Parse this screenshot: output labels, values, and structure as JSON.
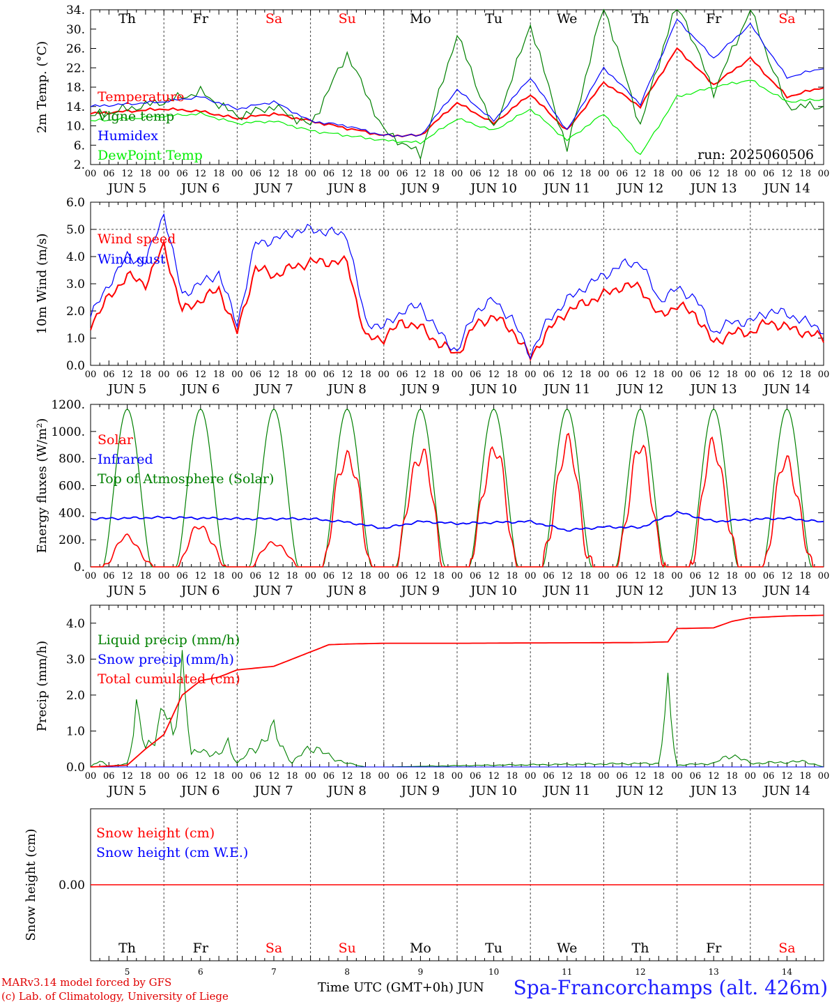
{
  "chart_data": [
    {
      "type": "line",
      "ylabel": "2m Temp. (°C)",
      "ylim": [
        2,
        34
      ],
      "yticks": [
        "34.",
        "30.",
        "26.",
        "22.",
        "18.",
        "14.",
        "10.",
        "6.",
        "2."
      ],
      "run_label": "run: 2025060506",
      "top_day_labels": [
        "Th",
        "Fr",
        "Sa",
        "Su",
        "Mo",
        "Tu",
        "We",
        "Th",
        "Fr",
        "Sa"
      ],
      "date_labels": [
        "JUN  5",
        "JUN  6",
        "JUN  7",
        "JUN  8",
        "JUN  9",
        "JUN 10",
        "JUN 11",
        "JUN 12",
        "JUN 13",
        "JUN 14"
      ],
      "series": [
        {
          "name": "Temperature",
          "color": "#ff0000",
          "t": [
            0,
            24,
            36,
            48,
            60,
            72,
            84,
            96,
            108,
            120,
            132,
            144,
            156,
            168,
            180,
            192,
            204,
            216,
            228,
            240
          ],
          "values": [
            12.5,
            13.5,
            13,
            11.5,
            12.5,
            11,
            9.5,
            8,
            8,
            14.8,
            10.5,
            16.5,
            9,
            19,
            14,
            26,
            18.5,
            24,
            16,
            18
          ]
        },
        {
          "name": "Vigne temp",
          "color": "#008000",
          "t": [
            0,
            24,
            36,
            48,
            60,
            72,
            84,
            96,
            108,
            120,
            132,
            144,
            156,
            168,
            180,
            192,
            204,
            216,
            228,
            240
          ],
          "values": [
            12,
            15,
            17,
            12,
            14,
            10,
            25,
            9,
            4,
            29,
            9,
            31,
            5,
            35,
            10,
            36,
            17,
            34,
            14,
            14
          ]
        },
        {
          "name": "Humidex",
          "color": "#0000ff",
          "t": [
            0,
            24,
            36,
            48,
            60,
            72,
            84,
            96,
            108,
            120,
            132,
            144,
            156,
            168,
            180,
            192,
            204,
            216,
            228,
            240
          ],
          "values": [
            14,
            15,
            16,
            13.5,
            15,
            11,
            10,
            8,
            8,
            17.5,
            11,
            20,
            9,
            22,
            14.5,
            32,
            24,
            31,
            20,
            22
          ]
        },
        {
          "name": "DewPoint Temp",
          "color": "#00ee00",
          "t": [
            0,
            24,
            36,
            48,
            60,
            72,
            84,
            96,
            108,
            120,
            132,
            144,
            156,
            168,
            180,
            192,
            204,
            216,
            228,
            240
          ],
          "values": [
            11,
            12,
            12.5,
            10.5,
            11,
            9,
            8,
            7,
            6.5,
            11.5,
            9,
            13.5,
            7,
            12.5,
            4,
            16,
            18,
            19.5,
            15,
            15.5
          ]
        }
      ]
    },
    {
      "type": "line",
      "ylabel": "10m Wind (m/s)",
      "ylim": [
        0,
        6
      ],
      "yticks": [
        "6.0",
        "5.0",
        "4.0",
        "3.0",
        "2.0",
        "1.0",
        "0.0"
      ],
      "reference_line": 5.0,
      "date_labels": [
        "JUN  5",
        "JUN  6",
        "JUN  7",
        "JUN  8",
        "JUN  9",
        "JUN 10",
        "JUN 11",
        "JUN 12",
        "JUN 13",
        "JUN 14"
      ],
      "series": [
        {
          "name": "Wind speed",
          "color": "#ff0000",
          "t": [
            0,
            6,
            12,
            18,
            24,
            30,
            36,
            42,
            48,
            54,
            60,
            66,
            72,
            78,
            84,
            90,
            96,
            102,
            108,
            114,
            120,
            126,
            132,
            138,
            144,
            150,
            156,
            162,
            168,
            174,
            180,
            186,
            192,
            198,
            204,
            210,
            216,
            222,
            228,
            234,
            240
          ],
          "values": [
            1.5,
            2.5,
            3.3,
            3.0,
            4.4,
            2.0,
            2.4,
            2.8,
            1.2,
            3.6,
            3.3,
            3.6,
            3.8,
            3.8,
            3.8,
            1.0,
            1.0,
            1.6,
            1.4,
            0.8,
            0.4,
            1.5,
            1.8,
            1.3,
            0.3,
            1.3,
            2.0,
            2.3,
            2.6,
            2.9,
            2.9,
            1.8,
            2.2,
            1.9,
            0.8,
            1.2,
            1.2,
            1.6,
            1.4,
            1.2,
            1.0
          ]
        },
        {
          "name": "Wind gust",
          "color": "#0000ff",
          "t": [
            0,
            6,
            12,
            18,
            24,
            30,
            36,
            42,
            48,
            54,
            60,
            66,
            72,
            78,
            84,
            90,
            96,
            102,
            108,
            114,
            120,
            126,
            132,
            138,
            144,
            150,
            156,
            162,
            168,
            174,
            180,
            186,
            192,
            198,
            204,
            210,
            216,
            222,
            228,
            234,
            240
          ],
          "values": [
            1.8,
            3.0,
            4.0,
            3.8,
            5.6,
            2.6,
            3.0,
            3.4,
            1.5,
            4.5,
            4.6,
            4.9,
            5.0,
            4.9,
            4.8,
            1.6,
            1.4,
            2.0,
            2.2,
            1.2,
            0.5,
            2.0,
            2.4,
            1.7,
            0.4,
            1.7,
            2.4,
            2.9,
            3.3,
            3.7,
            3.8,
            2.4,
            2.8,
            2.5,
            1.2,
            1.6,
            1.6,
            2.0,
            1.9,
            1.6,
            1.3
          ]
        }
      ]
    },
    {
      "type": "line",
      "ylabel": "Energy fluxes (W/m²)",
      "ylim": [
        0,
        1200
      ],
      "yticks": [
        "1200.",
        "1000.",
        "800.",
        "600.",
        "400.",
        "200.",
        "0."
      ],
      "date_labels": [
        "JUN  5",
        "JUN  6",
        "JUN  7",
        "JUN  8",
        "JUN  9",
        "JUN 10",
        "JUN 11",
        "JUN 12",
        "JUN 13",
        "JUN 14"
      ],
      "daily_solar_peaks": [
        220,
        300,
        180,
        840,
        850,
        860,
        890,
        860,
        870,
        780
      ],
      "toa_peak": 1165,
      "series": [
        {
          "name": "Solar",
          "color": "#ff0000"
        },
        {
          "name": "Infrared",
          "color": "#0000ff",
          "t": [
            0,
            24,
            48,
            72,
            84,
            96,
            108,
            120,
            144,
            156,
            168,
            180,
            192,
            204,
            216,
            228,
            240
          ],
          "values": [
            355,
            365,
            355,
            355,
            330,
            285,
            335,
            320,
            335,
            270,
            295,
            290,
            405,
            335,
            350,
            360,
            330
          ]
        },
        {
          "name": "Top of Atmosphere (Solar)",
          "color": "#008000"
        }
      ]
    },
    {
      "type": "line",
      "ylabel": "Precip (mm/h)",
      "ylim": [
        0,
        4.5
      ],
      "yticks": [
        "4.0",
        "3.0",
        "2.0",
        "1.0",
        "0.0"
      ],
      "date_labels": [
        "JUN  5",
        "JUN  6",
        "JUN  7",
        "JUN  8",
        "JUN  9",
        "JUN 10",
        "JUN 11",
        "JUN 12",
        "JUN 13",
        "JUN 14"
      ],
      "series": [
        {
          "name": "Liquid precip (mm/h)",
          "color": "#008000",
          "t": [
            0,
            3,
            6,
            12,
            15,
            18,
            21,
            24,
            27,
            30,
            33,
            36,
            42,
            45,
            48,
            60,
            66,
            72,
            78,
            84,
            90,
            96,
            132,
            186,
            189,
            192,
            204,
            210,
            216,
            234,
            240
          ],
          "values": [
            0,
            0.2,
            0,
            0.1,
            1.5,
            0.5,
            0.9,
            1.6,
            0.8,
            3.0,
            0.3,
            0.5,
            0.3,
            0.7,
            0.1,
            1.0,
            0.1,
            0.6,
            0.3,
            0.1,
            0,
            0,
            0.05,
            0.1,
            1.95,
            0.05,
            0.1,
            0.35,
            0.1,
            0.15,
            0
          ]
        },
        {
          "name": "Snow precip (mm/h)",
          "color": "#0000ff",
          "t": [
            0,
            240
          ],
          "values": [
            0,
            0
          ]
        },
        {
          "name": "Total cumulated (cm)",
          "color": "#ff0000",
          "t": [
            0,
            12,
            18,
            24,
            30,
            36,
            42,
            48,
            60,
            66,
            72,
            78,
            84,
            96,
            120,
            144,
            180,
            189,
            192,
            204,
            210,
            216,
            228,
            240
          ],
          "values": [
            0,
            0.05,
            0.5,
            0.9,
            2.0,
            2.4,
            2.5,
            2.7,
            2.8,
            3.0,
            3.2,
            3.4,
            3.42,
            3.44,
            3.44,
            3.45,
            3.46,
            3.48,
            3.85,
            3.87,
            4.05,
            4.15,
            4.2,
            4.22
          ]
        }
      ]
    },
    {
      "type": "line",
      "ylabel": "Snow height (cm)",
      "yticks": [
        "0.00"
      ],
      "bottom_day_labels": [
        "Th",
        "Fr",
        "Sa",
        "Su",
        "Mo",
        "Tu",
        "We",
        "Th",
        "Fr",
        "Sa"
      ],
      "bottom_date_numbers": [
        "5",
        "6",
        "7",
        "8",
        "9",
        "10",
        "11",
        "12",
        "13",
        "14"
      ],
      "series": [
        {
          "name": "Snow height (cm)",
          "color": "#ff0000",
          "t": [
            0,
            240
          ],
          "values": [
            0,
            0
          ]
        },
        {
          "name": "Snow height (cm W.E.)",
          "color": "#0000ff",
          "t": [
            0,
            240
          ],
          "values": [
            0,
            0
          ]
        }
      ]
    }
  ],
  "xlabel": "Time UTC (GMT+0h)",
  "xlabel_month": "JUN",
  "hour_labels": [
    "00",
    "06",
    "12",
    "18"
  ],
  "day_label_colors": {
    "weekday": "#000000",
    "weekend": "#ff0000"
  },
  "footer": {
    "model": "MARv3.14 model forced by GFS",
    "credit": "(c) Lab. of Climatology, University of Liege",
    "station": "Spa-Francorchamps (alt. 426m)"
  }
}
